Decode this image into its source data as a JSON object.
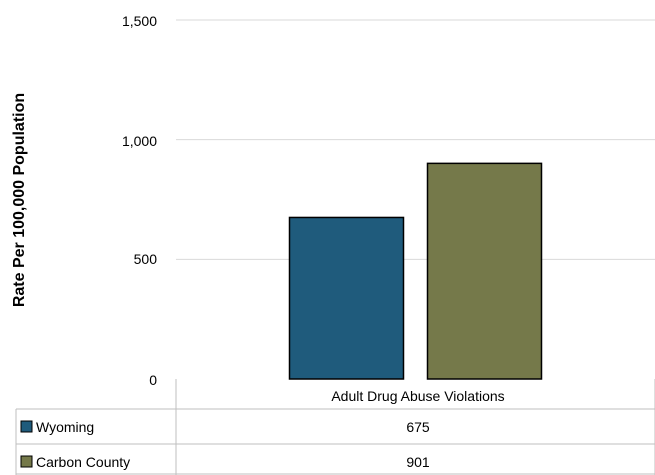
{
  "chart_data": {
    "type": "bar",
    "ylabel": "Rate Per 100,000 Population",
    "ylim": [
      0,
      1500
    ],
    "yticks": [
      "0",
      "500",
      "1,000",
      "1,500"
    ],
    "grid": true,
    "legend": "data table below chart",
    "categories": [
      "Adult Drug Abuse Violations"
    ],
    "series": [
      {
        "name": "Wyoming",
        "values": [
          675
        ],
        "display": "675",
        "color": "#1f5b7c"
      },
      {
        "name": "Carbon County",
        "values": [
          901
        ],
        "display": "901",
        "color": "#75794a"
      }
    ]
  }
}
